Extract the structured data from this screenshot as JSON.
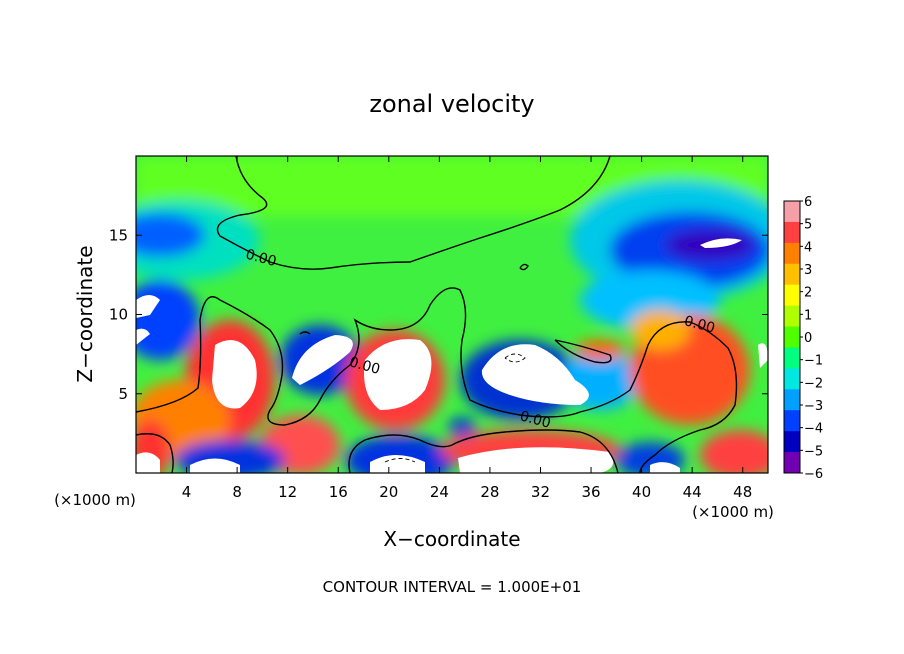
{
  "chart_data": {
    "type": "heatmap",
    "title": "zonal velocity",
    "xlabel": "X−coordinate",
    "ylabel": "Z−coordinate",
    "x_unit_left": "(×1000 m)",
    "x_unit_right": "(×1000 m)",
    "footer": "CONTOUR INTERVAL = 1.000E+01",
    "xlim": [
      0,
      50
    ],
    "ylim": [
      0,
      20
    ],
    "x_ticks": [
      "4",
      "8",
      "12",
      "16",
      "20",
      "24",
      "28",
      "32",
      "36",
      "40",
      "44",
      "48"
    ],
    "x_tick_values": [
      4,
      8,
      12,
      16,
      20,
      24,
      28,
      32,
      36,
      40,
      44,
      48
    ],
    "y_ticks": [
      "5",
      "10",
      "15"
    ],
    "y_tick_values": [
      5,
      10,
      15
    ],
    "contour_labels": [
      {
        "text": "0.00",
        "x": 9.8,
        "y": 13.3
      },
      {
        "text": "0.00",
        "x": 18.0,
        "y": 6.5
      },
      {
        "text": "0.00",
        "x": 31.5,
        "y": 3.1
      },
      {
        "text": "0.00",
        "x": 44.5,
        "y": 9.1
      }
    ],
    "colorbar": {
      "ticks": [
        "6",
        "5",
        "4",
        "3",
        "2",
        "1",
        "0",
        "−1",
        "−2",
        "−3",
        "−4",
        "−5",
        "−6"
      ],
      "colors": [
        "#f5a0a8",
        "#ff4040",
        "#ff8000",
        "#ffc000",
        "#ffff00",
        "#b0ff00",
        "#50ff00",
        "#00ff80",
        "#00e8e0",
        "#00a0ff",
        "#0040ff",
        "#0000c0",
        "#7000b0"
      ]
    }
  }
}
